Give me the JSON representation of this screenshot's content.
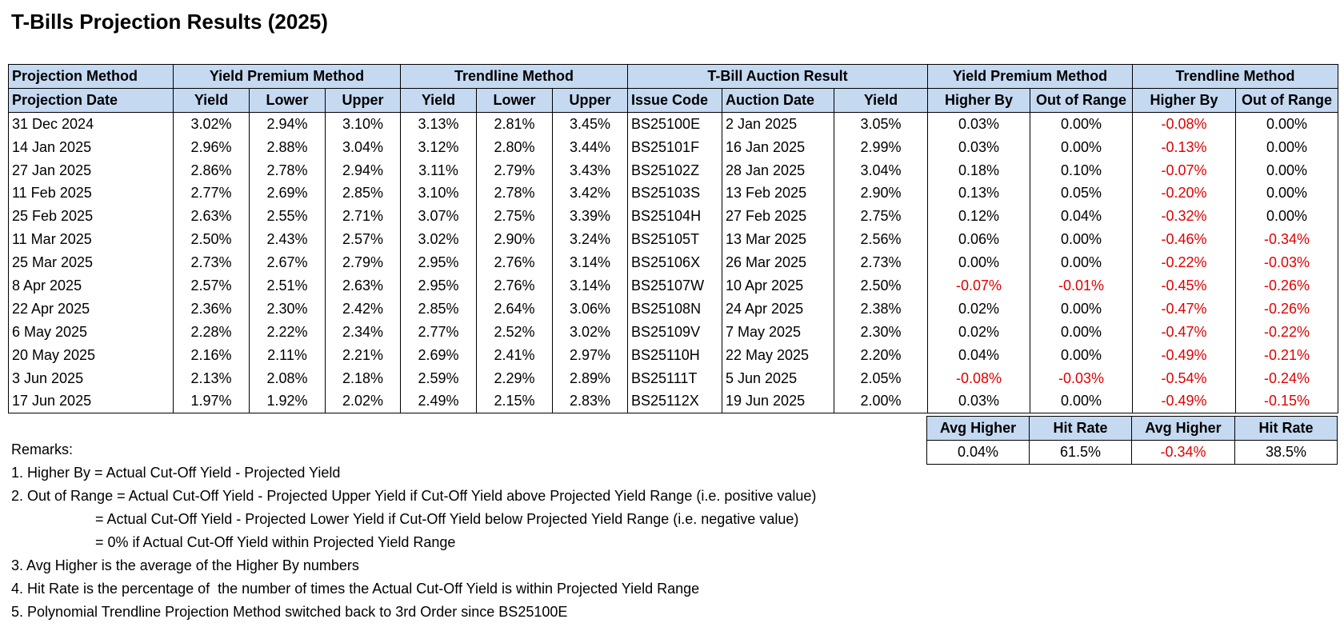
{
  "title": "T-Bills Projection Results (2025)",
  "header_row1": {
    "col1": "Projection Method",
    "ypm": "Yield Premium Method",
    "trend": "Trendline Method",
    "auction": "T-Bill Auction Result",
    "ypm2": "Yield Premium Method",
    "trend2": "Trendline Method"
  },
  "header_row2": [
    "Projection Date",
    "Yield",
    "Lower",
    "Upper",
    "Yield",
    "Lower",
    "Upper",
    "Issue Code",
    "Auction Date",
    "Yield",
    "Higher By",
    "Out of Range",
    "Higher By",
    "Out of Range"
  ],
  "rows": [
    [
      "31 Dec 2024",
      "3.02%",
      "2.94%",
      "3.10%",
      "3.13%",
      "2.81%",
      "3.45%",
      "BS25100E",
      "2 Jan 2025",
      "3.05%",
      "0.03%",
      "0.00%",
      "-0.08%",
      "0.00%"
    ],
    [
      "14 Jan 2025",
      "2.96%",
      "2.88%",
      "3.04%",
      "3.12%",
      "2.80%",
      "3.44%",
      "BS25101F",
      "16 Jan 2025",
      "2.99%",
      "0.03%",
      "0.00%",
      "-0.13%",
      "0.00%"
    ],
    [
      "27 Jan 2025",
      "2.86%",
      "2.78%",
      "2.94%",
      "3.11%",
      "2.79%",
      "3.43%",
      "BS25102Z",
      "28 Jan 2025",
      "3.04%",
      "0.18%",
      "0.10%",
      "-0.07%",
      "0.00%"
    ],
    [
      "11 Feb 2025",
      "2.77%",
      "2.69%",
      "2.85%",
      "3.10%",
      "2.78%",
      "3.42%",
      "BS25103S",
      "13 Feb 2025",
      "2.90%",
      "0.13%",
      "0.05%",
      "-0.20%",
      "0.00%"
    ],
    [
      "25 Feb 2025",
      "2.63%",
      "2.55%",
      "2.71%",
      "3.07%",
      "2.75%",
      "3.39%",
      "BS25104H",
      "27 Feb 2025",
      "2.75%",
      "0.12%",
      "0.04%",
      "-0.32%",
      "0.00%"
    ],
    [
      "11 Mar 2025",
      "2.50%",
      "2.43%",
      "2.57%",
      "3.02%",
      "2.90%",
      "3.24%",
      "BS25105T",
      "13 Mar 2025",
      "2.56%",
      "0.06%",
      "0.00%",
      "-0.46%",
      "-0.34%"
    ],
    [
      "25 Mar 2025",
      "2.73%",
      "2.67%",
      "2.79%",
      "2.95%",
      "2.76%",
      "3.14%",
      "BS25106X",
      "26 Mar 2025",
      "2.73%",
      "0.00%",
      "0.00%",
      "-0.22%",
      "-0.03%"
    ],
    [
      "8 Apr 2025",
      "2.57%",
      "2.51%",
      "2.63%",
      "2.95%",
      "2.76%",
      "3.14%",
      "BS25107W",
      "10 Apr 2025",
      "2.50%",
      "-0.07%",
      "-0.01%",
      "-0.45%",
      "-0.26%"
    ],
    [
      "22 Apr 2025",
      "2.36%",
      "2.30%",
      "2.42%",
      "2.85%",
      "2.64%",
      "3.06%",
      "BS25108N",
      "24 Apr 2025",
      "2.38%",
      "0.02%",
      "0.00%",
      "-0.47%",
      "-0.26%"
    ],
    [
      "6 May 2025",
      "2.28%",
      "2.22%",
      "2.34%",
      "2.77%",
      "2.52%",
      "3.02%",
      "BS25109V",
      "7 May 2025",
      "2.30%",
      "0.02%",
      "0.00%",
      "-0.47%",
      "-0.22%"
    ],
    [
      "20 May 2025",
      "2.16%",
      "2.11%",
      "2.21%",
      "2.69%",
      "2.41%",
      "2.97%",
      "BS25110H",
      "22 May 2025",
      "2.20%",
      "0.04%",
      "0.00%",
      "-0.49%",
      "-0.21%"
    ],
    [
      "3 Jun 2025",
      "2.13%",
      "2.08%",
      "2.18%",
      "2.59%",
      "2.29%",
      "2.89%",
      "BS25111T",
      "5 Jun 2025",
      "2.05%",
      "-0.08%",
      "-0.03%",
      "-0.54%",
      "-0.24%"
    ],
    [
      "17 Jun 2025",
      "1.97%",
      "1.92%",
      "2.02%",
      "2.49%",
      "2.15%",
      "2.83%",
      "BS25112X",
      "19 Jun 2025",
      "2.00%",
      "0.03%",
      "0.00%",
      "-0.49%",
      "-0.15%"
    ]
  ],
  "summary": {
    "headers": [
      "Avg Higher",
      "Hit Rate",
      "Avg Higher",
      "Hit Rate"
    ],
    "values": [
      "0.04%",
      "61.5%",
      "-0.34%",
      "38.5%"
    ]
  },
  "remarks": {
    "heading": "Remarks:",
    "lines": [
      "1. Higher By = Actual Cut-Off Yield - Projected Yield",
      "2. Out of Range = Actual Cut-Off Yield - Projected Upper Yield if Cut-Off Yield above Projected Yield Range (i.e. positive value)",
      "                     = Actual Cut-Off Yield - Projected Lower Yield if Cut-Off Yield below Projected Yield Range (i.e. negative value)",
      "                     = 0% if Actual Cut-Off Yield within Projected Yield Range",
      "3. Avg Higher is the average of the Higher By numbers",
      "4. Hit Rate is the percentage of  the number of times the Actual Cut-Off Yield is within Projected Yield Range",
      "5. Polynomial Trendline Projection Method switched back to 3rd Order since BS25100E"
    ]
  },
  "colors": {
    "header_fill": "#c5d9f1",
    "negative_text": "#e00000",
    "border": "#000000"
  }
}
